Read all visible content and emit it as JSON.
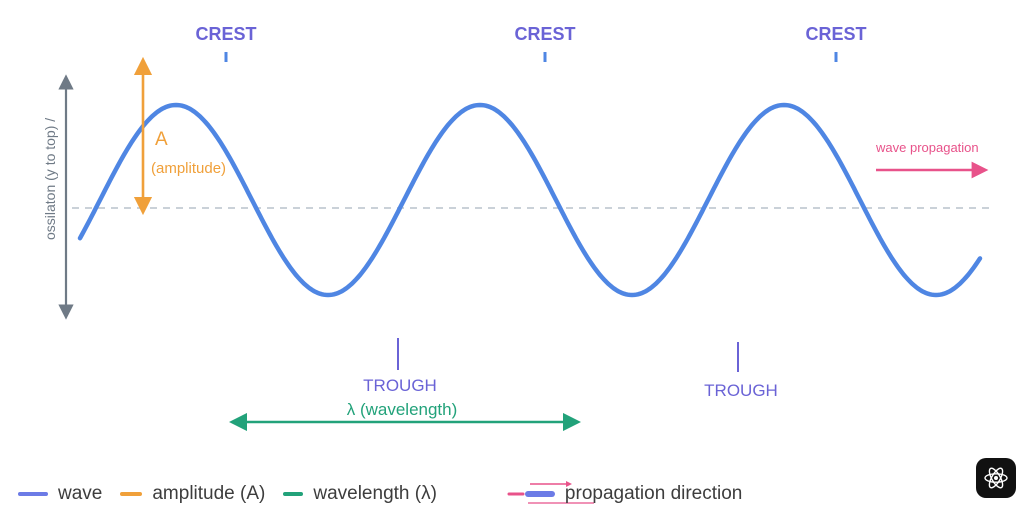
{
  "colors": {
    "wave": "#4f86e3",
    "amplitude": "#f0a03a",
    "wavelength": "#22a27a",
    "propagation": "#e8528a",
    "label": "#6a63d6",
    "axis": "#6f7a86",
    "baseline": "#b8c2cc"
  },
  "labels": {
    "crest": [
      "CREST",
      "CREST",
      "CREST"
    ],
    "trough": [
      "TROUGH",
      "TROUGH"
    ],
    "amplitude_letter": "A",
    "amplitude_text": "(amplitude)",
    "wavelength": "λ (wavelength)",
    "propagation": "wave propagation",
    "axis": "ossilaton (y to top) /"
  },
  "legend": {
    "wave": "wave",
    "amplitude": "amplitude (A)",
    "wavelength": "wavelength (λ)",
    "propagation": "propagation direction"
  },
  "icons": {
    "logo": "atom-icon"
  }
}
